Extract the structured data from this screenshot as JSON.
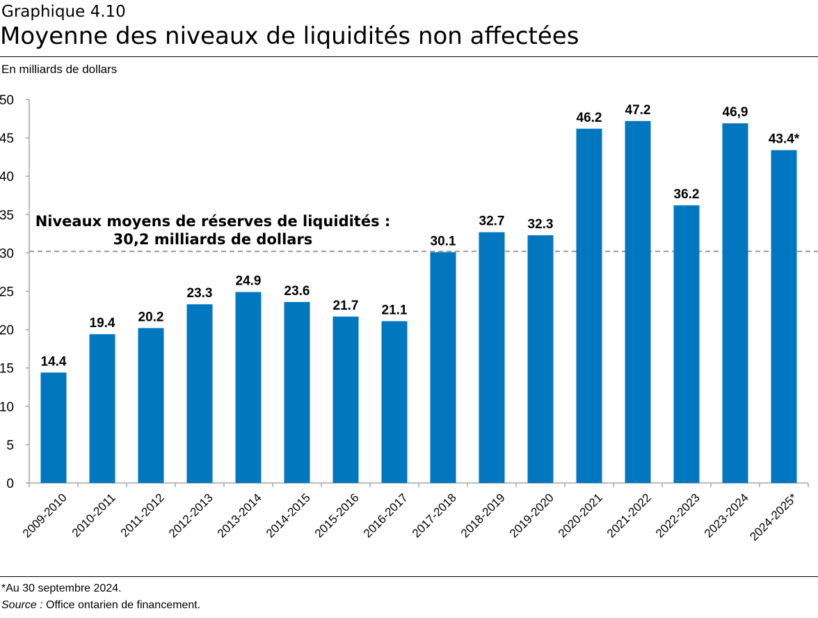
{
  "header": {
    "label": "Graphique 4.10",
    "title": "Moyenne des niveaux de liquidités non affectées"
  },
  "chart_data": {
    "type": "bar",
    "title": "Moyenne des niveaux de liquidités non affectées",
    "ylabel": "En milliards de dollars",
    "xlabel": "",
    "ylim": [
      0,
      50
    ],
    "yticks": [
      0,
      5,
      10,
      15,
      20,
      25,
      30,
      35,
      40,
      45,
      50
    ],
    "grid": false,
    "categories": [
      "2009-2010",
      "2010-2011",
      "2011-2012",
      "2012-2013",
      "2013-2014",
      "2014-2015",
      "2015-2016",
      "2016-2017",
      "2017-2018",
      "2018-2019",
      "2019-2020",
      "2020-2021",
      "2021-2022",
      "2022-2023",
      "2023-2024",
      "2024-2025*"
    ],
    "values": [
      14.4,
      19.4,
      20.2,
      23.3,
      24.9,
      23.6,
      21.7,
      21.1,
      30.1,
      32.7,
      32.3,
      46.2,
      47.2,
      36.2,
      46.9,
      43.4
    ],
    "data_labels": [
      "14.4",
      "19.4",
      "20.2",
      "23.3",
      "24.9",
      "23.6",
      "21.7",
      "21.1",
      "30.1",
      "32.7",
      "32.3",
      "46.2",
      "47.2",
      "36.2",
      "46,9",
      "43.4*"
    ],
    "bar_color": "#0077BE",
    "reference_line": {
      "value": 30.2,
      "label_line1": "Niveaux moyens de réserves de liquidités :",
      "label_line2": "30,2 milliards de dollars",
      "color": "#999999"
    }
  },
  "footer": {
    "note": "*Au 30 septembre 2024.",
    "source_label": "Source :",
    "source_text": " Office ontarien de financement."
  }
}
